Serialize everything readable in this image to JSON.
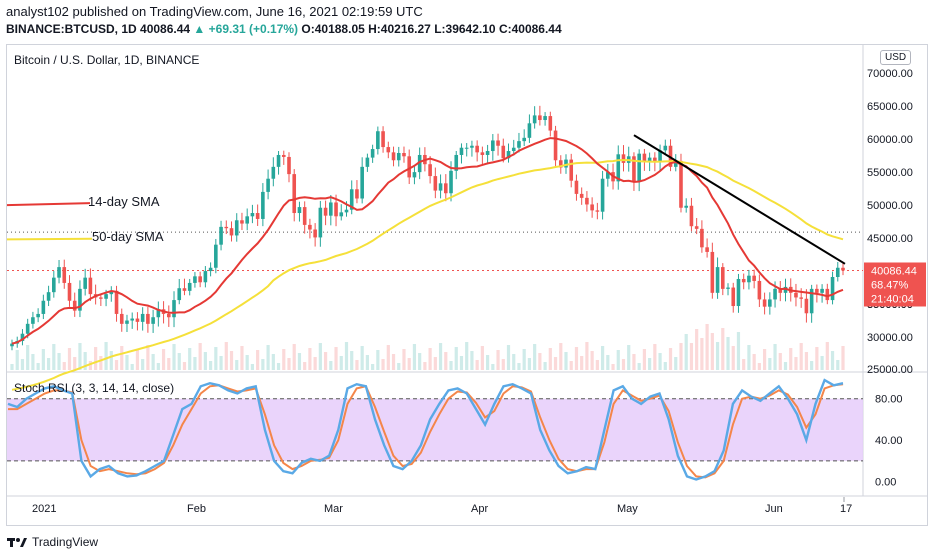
{
  "header": {
    "publisher_line": "analyst102 published on TradingView.com, June 16, 2021 02:19:59 UTC",
    "symbol": "BINANCE:BTCUSD, 1D",
    "last": "40086.44",
    "change": "+69.31 (+0.17%)",
    "open": "O:40188.05",
    "high": "H:40216.27",
    "low": "L:39642.10",
    "close": "C:40086.44"
  },
  "pane_title": "Bitcoin / U.S. Dollar, 1D, BINANCE",
  "currency_button": "USD",
  "annotations": {
    "sma14": "14-day SMA",
    "sma50": "50-day SMA"
  },
  "price_tags": {
    "price": "40086.44",
    "pct": "68.47%",
    "countdown": "21:40:04"
  },
  "rsi_title": "Stoch RSI (3, 3, 14, 14, close)",
  "footer_logo": "TradingView",
  "colors": {
    "up": "#26a69a",
    "down": "#ef5350",
    "sma14": "#e53935",
    "sma50": "#f5e03a",
    "k_line": "#5aa9e6",
    "d_line": "#f4864a",
    "rsi_band": "#e6ccfa",
    "trendline": "#000000"
  },
  "chart_data": [
    {
      "type": "candlestick",
      "title": "Bitcoin / U.S. Dollar, 1D, BINANCE",
      "x_ticks": [
        "2021",
        "Feb",
        "Mar",
        "Apr",
        "May",
        "Jun",
        "17"
      ],
      "y_ticks": [
        "30000.00",
        "35000.00",
        "40000.00",
        "45000.00",
        "50000.00",
        "55000.00",
        "60000.00",
        "65000.00",
        "70000.00"
      ],
      "ylim": [
        25000,
        72000
      ],
      "grid": false,
      "current_price_line": 40086.44,
      "closes_approx": [
        29000,
        29400,
        30500,
        32000,
        33000,
        33500,
        35500,
        36800,
        39000,
        40600,
        38200,
        35500,
        34000,
        37300,
        39000,
        36500,
        36000,
        35800,
        36500,
        37000,
        33500,
        32000,
        32500,
        32800,
        32300,
        33500,
        32000,
        33000,
        34200,
        33500,
        33000,
        35600,
        37400,
        37000,
        38200,
        39200,
        38300,
        40000,
        40500,
        44000,
        46700,
        46500,
        45400,
        47700,
        47200,
        48300,
        48800,
        47900,
        52000,
        54000,
        55800,
        57600,
        57300,
        54700,
        48800,
        49700,
        47000,
        46300,
        45100,
        49600,
        48400,
        50400,
        48300,
        48900,
        49300,
        52400,
        51000,
        55800,
        57200,
        58500,
        61200,
        58800,
        58000,
        56800,
        57900,
        57400,
        54200,
        55000,
        57600,
        56200,
        54400,
        52200,
        53300,
        51800,
        55200,
        57600,
        58700,
        58700,
        59000,
        58000,
        57600,
        58200,
        59800,
        59000,
        57100,
        58200,
        58700,
        59700,
        60200,
        62400,
        63600,
        62900,
        63500,
        61300,
        56800,
        55700,
        56900,
        53700,
        51700,
        51100,
        50100,
        49200,
        49000,
        54000,
        55000,
        53600,
        57700,
        56400,
        57400,
        53500,
        57800,
        56600,
        57200,
        56600,
        58300,
        59000,
        55800,
        56700,
        49600,
        49900,
        46800,
        46400,
        43600,
        42900,
        36700,
        40600,
        37300,
        37500,
        34700,
        38800,
        38300,
        39300,
        38500,
        35700,
        34600,
        35700,
        37300,
        36700,
        37600,
        36700,
        36000,
        35800,
        33600,
        37300,
        36700,
        37300,
        35600,
        39100,
        40500,
        40100
      ],
      "series": [
        {
          "name": "14-day SMA",
          "start": 29500,
          "end": 38800
        },
        {
          "name": "50-day SMA",
          "start": 22000,
          "end": 45300
        }
      ],
      "trendline": {
        "from": 60600,
        "to": 41100
      }
    },
    {
      "type": "line",
      "title": "Stoch RSI (3, 3, 14, 14, close)",
      "y_ticks": [
        "0.00",
        "40.00",
        "80.00"
      ],
      "ylim": [
        -12,
        100
      ],
      "band": [
        20,
        80
      ],
      "series": [
        {
          "name": "K",
          "values": [
            75,
            72,
            80,
            85,
            90,
            92,
            88,
            85,
            20,
            5,
            12,
            15,
            8,
            5,
            6,
            10,
            15,
            20,
            45,
            70,
            75,
            92,
            95,
            93,
            88,
            85,
            90,
            92,
            50,
            20,
            10,
            8,
            18,
            22,
            20,
            25,
            50,
            90,
            94,
            92,
            60,
            35,
            15,
            12,
            20,
            35,
            60,
            75,
            88,
            90,
            85,
            70,
            55,
            75,
            92,
            94,
            90,
            85,
            50,
            30,
            15,
            8,
            10,
            14,
            12,
            50,
            88,
            92,
            80,
            75,
            82,
            85,
            60,
            25,
            5,
            2,
            5,
            10,
            30,
            75,
            88,
            82,
            78,
            85,
            92,
            80,
            65,
            40,
            75,
            98,
            93,
            95
          ]
        },
        {
          "name": "D",
          "values": [
            70,
            70,
            75,
            80,
            85,
            88,
            88,
            86,
            40,
            15,
            10,
            12,
            10,
            8,
            7,
            8,
            12,
            18,
            35,
            55,
            70,
            85,
            92,
            93,
            90,
            87,
            88,
            90,
            65,
            35,
            18,
            12,
            15,
            20,
            21,
            23,
            40,
            75,
            90,
            92,
            72,
            48,
            25,
            15,
            17,
            28,
            48,
            65,
            80,
            87,
            86,
            76,
            62,
            68,
            85,
            92,
            91,
            87,
            62,
            40,
            22,
            12,
            10,
            12,
            12,
            38,
            75,
            88,
            83,
            78,
            80,
            83,
            68,
            38,
            15,
            5,
            4,
            8,
            20,
            55,
            80,
            82,
            80,
            83,
            88,
            84,
            72,
            52,
            65,
            90,
            93,
            94
          ]
        }
      ]
    }
  ]
}
